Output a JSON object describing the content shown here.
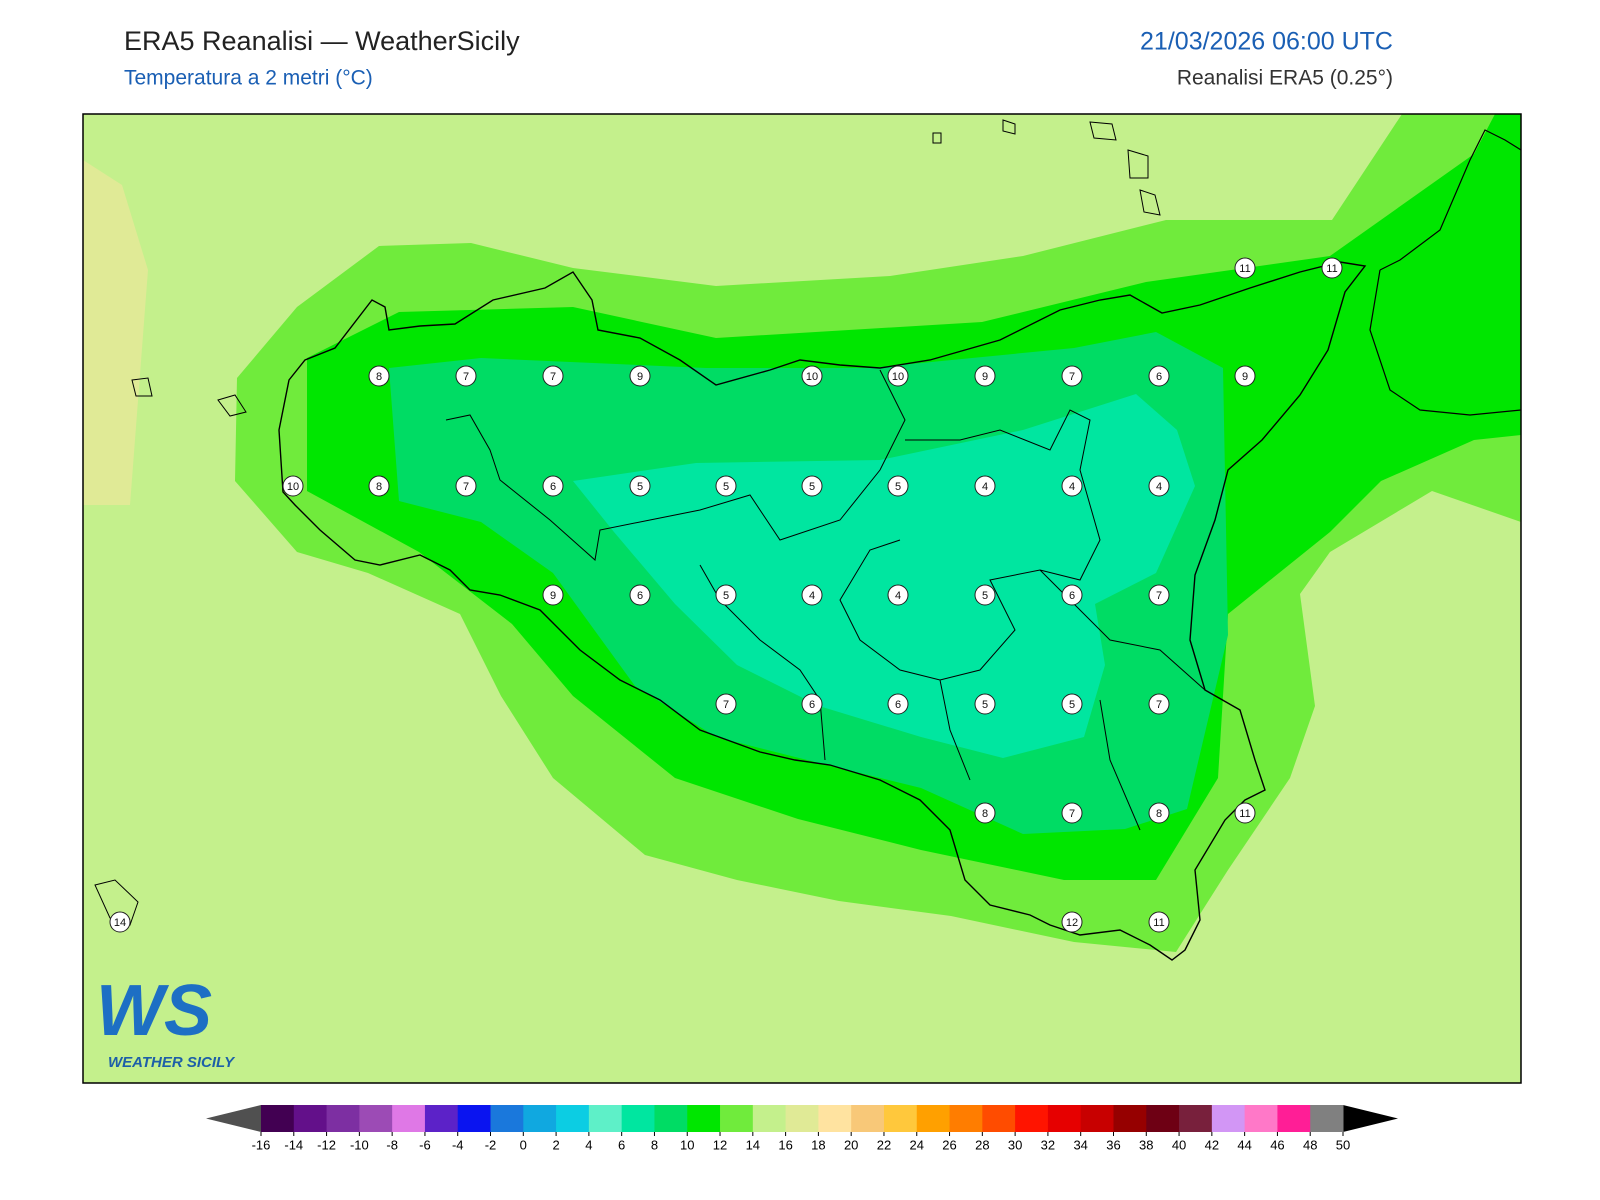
{
  "header": {
    "title": "ERA5 Reanalisi — WeatherSicily",
    "subtitle": "Temperatura a 2 metri (°C)",
    "date": "21/03/2026 06:00 UTC",
    "source": "Reanalisi ERA5 (0.25°)"
  },
  "map": {
    "stations": [
      8,
      7,
      7,
      9,
      10,
      10,
      9,
      7,
      6,
      9,
      11,
      11,
      10,
      8,
      7,
      6,
      5,
      5,
      5,
      5,
      4,
      4,
      4,
      9,
      6,
      5,
      4,
      4,
      5,
      6,
      7,
      7,
      6,
      6,
      5,
      5,
      7,
      8,
      7,
      8,
      11,
      14,
      12,
      11
    ]
  },
  "colorbar": {
    "ticks": [
      -16,
      -14,
      -12,
      -10,
      -8,
      -6,
      -4,
      -2,
      0,
      2,
      4,
      6,
      8,
      10,
      12,
      14,
      16,
      18,
      20,
      22,
      24,
      26,
      28,
      30,
      32,
      34,
      36,
      38,
      40,
      42,
      44,
      46,
      48,
      50
    ],
    "colors": [
      "#420052",
      "#63108a",
      "#7d2fa2",
      "#9c4bb5",
      "#df78e6",
      "#5c22c8",
      "#0a14f0",
      "#1a78dc",
      "#10a8e0",
      "#0ccde3",
      "#5ef0c8",
      "#00e6a0",
      "#00dc64",
      "#00e600",
      "#70eb3c",
      "#c4f08c",
      "#e0ea96",
      "#ffe3a0",
      "#f8c878",
      "#ffc83c",
      "#ffa000",
      "#ff7d00",
      "#ff4c00",
      "#ff1400",
      "#e60000",
      "#c80000",
      "#960000",
      "#6e0014",
      "#78203c",
      "#d296f5",
      "#ff78c8",
      "#ff1e96",
      "#808080",
      "#3c3c3c"
    ],
    "under_color": "#505050",
    "over_color": "#000000"
  },
  "logo": {
    "mark": "WS",
    "text": "WEATHER SICILY"
  }
}
